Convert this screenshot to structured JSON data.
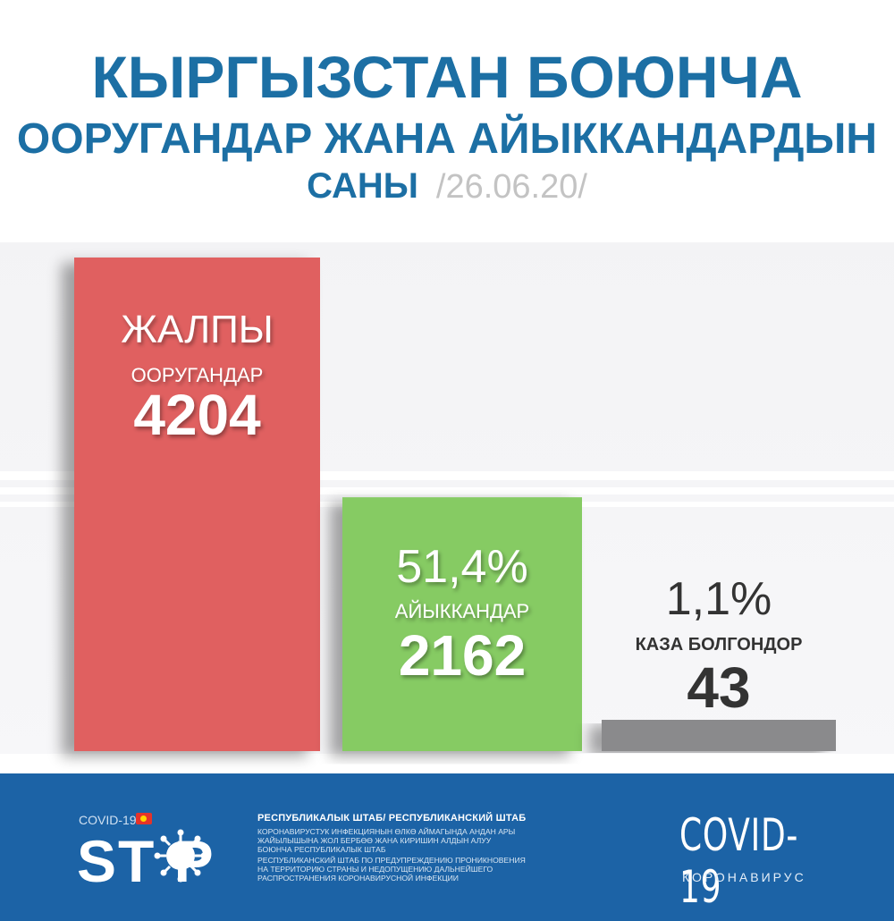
{
  "header": {
    "title_line1": "КЫРГЫЗСТАН БОЮНЧА",
    "title_line2": "ООРУГАНДАР ЖАНА АЙЫККАНДАРДЫН",
    "title_line3": "САНЫ",
    "date": "/26.06.20/"
  },
  "chart_data": {
    "type": "bar",
    "categories": [
      "ЖАЛПЫ ООРУГАНДАР",
      "АЙЫККАНДАР",
      "КАЗА БОЛГОНДОР"
    ],
    "values": [
      4204,
      2162,
      43
    ],
    "bars": [
      {
        "top_label": "ЖАЛПЫ",
        "label": "ООРУГАНДАР",
        "value_text": "4204",
        "value": 4204,
        "color": "#e06060",
        "label_color": "#ffffff"
      },
      {
        "top_label": "51,4%",
        "label": "АЙЫККАНДАР",
        "value_text": "2162",
        "value": 2162,
        "color": "#86cb64",
        "label_color": "#ffffff"
      },
      {
        "top_label": "1,1%",
        "label": "КАЗА БОЛГОНДОР",
        "value_text": "43",
        "value": 43,
        "color": "#8a8a8c",
        "label_color": "#333333"
      }
    ],
    "ylim": [
      0,
      4204
    ]
  },
  "footer": {
    "covid_small": "COVID-19",
    "stop": "ST  P",
    "heading": "РЕСПУБЛИКАЛЫК ШТАБ/ РЕСПУБЛИКАНСКИЙ ШТАБ",
    "text_ky": "КОРОНАВИРУСТУК ИНФЕКЦИЯНЫН ӨЛКӨ АЙМАГЫНДА АНДАН АРЫ ЖАЙЫЛЫШЫНА ЖОЛ БЕРБӨӨ ЖАНА КИРИШИН АЛДЫН АЛУУ БОЮНЧА РЕСПУБЛИКАЛЫК ШТАБ",
    "text_ru": "РЕСПУБЛИКАНСКИЙ ШТАБ ПО ПРЕДУПРЕЖДЕНИЮ ПРОНИКНОВЕНИЯ НА ТЕРРИТОРИЮ СТРАНЫ И НЕДОПУЩЕНИЮ ДАЛЬНЕЙШЕГО РАСПРОСТРАНЕНИЯ КОРОНАВИРУСНОЙ ИНФЕКЦИИ",
    "covid_big": "COVID-19",
    "corona": "КОРОНАВИРУС"
  },
  "colors": {
    "title_blue": "#1c6fa4",
    "footer_blue": "#1c63a6",
    "date_gray": "#c3c3c3"
  }
}
